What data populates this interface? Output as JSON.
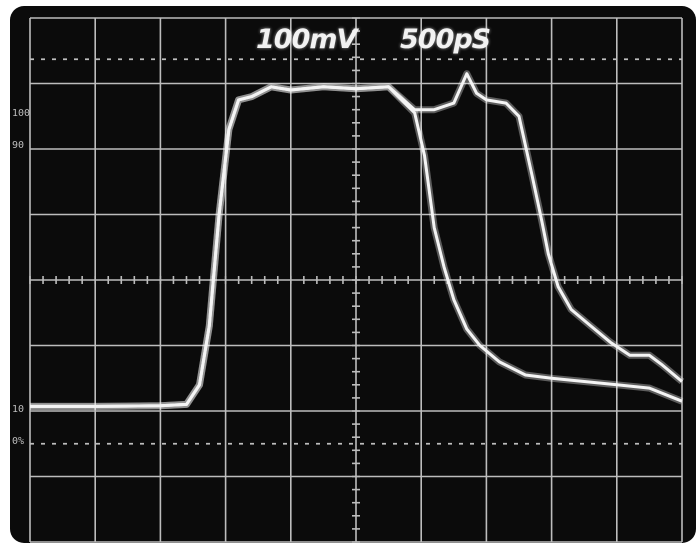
{
  "readouts": {
    "volts_per_div": "100mV",
    "time_per_div": "500pS"
  },
  "markers": {
    "top_100": "100",
    "top_90": "90",
    "bottom_10": "10",
    "bottom_0": "0%"
  },
  "colors": {
    "screen": "#0b0b0b",
    "graticule": "#bdbdbd",
    "trace": "#f4f4f4"
  },
  "chart_data": {
    "type": "line",
    "title": "",
    "xlabel": "",
    "ylabel": "",
    "grid": true,
    "xlim": [
      0,
      10
    ],
    "ylim": [
      0,
      8
    ],
    "series": [
      {
        "x": [
          0.0,
          1.0,
          2.0,
          2.4,
          2.6,
          2.75,
          2.9,
          3.05,
          3.2,
          3.4,
          3.7,
          4.0,
          4.5,
          5.0,
          5.5,
          5.9,
          6.05,
          6.2,
          6.35,
          6.5,
          6.7,
          6.9,
          7.2,
          7.6,
          8.0,
          8.5,
          9.0,
          9.5,
          10.0
        ],
        "y": [
          2.07,
          2.07,
          2.08,
          2.1,
          2.4,
          3.3,
          5.0,
          6.3,
          6.75,
          6.8,
          6.95,
          6.9,
          6.95,
          6.92,
          6.95,
          6.55,
          5.9,
          4.8,
          4.2,
          3.7,
          3.25,
          3.0,
          2.75,
          2.55,
          2.5,
          2.45,
          2.4,
          2.35,
          2.15
        ]
      },
      {
        "x": [
          0.0,
          1.0,
          2.0,
          2.4,
          2.6,
          2.75,
          2.9,
          3.05,
          3.2,
          3.4,
          3.7,
          4.0,
          4.5,
          5.0,
          5.5,
          5.9,
          6.2,
          6.5,
          6.7,
          6.85,
          7.0,
          7.3,
          7.5,
          7.7,
          7.85,
          7.95,
          8.1,
          8.3,
          8.6,
          8.9,
          9.2,
          9.4,
          9.5,
          9.7,
          10.0
        ],
        "y": [
          2.07,
          2.07,
          2.08,
          2.1,
          2.4,
          3.3,
          5.0,
          6.3,
          6.75,
          6.8,
          6.95,
          6.9,
          6.95,
          6.92,
          6.95,
          6.6,
          6.6,
          6.7,
          7.15,
          6.85,
          6.75,
          6.7,
          6.5,
          5.6,
          4.9,
          4.4,
          3.9,
          3.55,
          3.3,
          3.05,
          2.85,
          2.85,
          2.85,
          2.7,
          2.45
        ]
      }
    ]
  }
}
